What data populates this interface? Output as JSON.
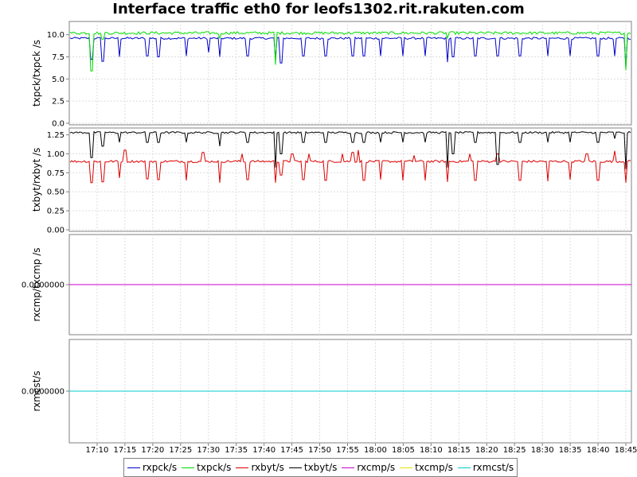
{
  "title": "Interface traffic eth0 for leofs1302.rit.rakuten.com",
  "colors": {
    "rxpck": "#0000cc",
    "txpck": "#00dd00",
    "rxbyt": "#dd0000",
    "txbyt": "#000000",
    "rxcmp": "#cc00cc",
    "txcmp": "#e6e600",
    "rxmcst": "#00cccc",
    "grid": "#dddddd",
    "axis": "#808080"
  },
  "chart_data": {
    "type": "line",
    "title": "Interface traffic eth0 for leofs1302.rit.rakuten.com",
    "x_ticks": [
      "17:10",
      "17:15",
      "17:20",
      "17:25",
      "17:30",
      "17:35",
      "17:40",
      "17:45",
      "17:50",
      "17:55",
      "18:00",
      "18:05",
      "18:10",
      "18:15",
      "18:20",
      "18:25",
      "18:30",
      "18:35",
      "18:40",
      "18:45"
    ],
    "x_range": [
      "17:05",
      "18:46"
    ],
    "grid": true,
    "legend_position": "bottom",
    "legend": [
      "rxpck/s",
      "txpck/s",
      "rxbyt/s",
      "txbyt/s",
      "rxcmp/s",
      "txcmp/s",
      "rxmcst/s"
    ],
    "panels": [
      {
        "ylabel": "txpck/txpck /s",
        "ylim": [
          0,
          11.5
        ],
        "yticks": [
          "0.0",
          "2.5",
          "5.0",
          "7.5",
          "10.0"
        ],
        "series": [
          {
            "name": "rxpck/s",
            "baseline": 9.6,
            "noise": 0.12,
            "dips": [
              [
                17.09,
                7.2
              ],
              [
                17.11,
                7.0
              ],
              [
                17.14,
                7.5
              ],
              [
                17.19,
                7.6
              ],
              [
                17.21,
                7.5
              ],
              [
                17.26,
                7.6
              ],
              [
                17.3,
                8.0
              ],
              [
                17.32,
                7.5
              ],
              [
                17.37,
                7.6
              ],
              [
                17.42,
                7.2
              ],
              [
                17.43,
                6.8
              ],
              [
                17.47,
                7.6
              ],
              [
                17.51,
                7.6
              ],
              [
                17.56,
                7.6
              ],
              [
                17.58,
                7.6
              ],
              [
                18.01,
                7.6
              ],
              [
                18.05,
                7.6
              ],
              [
                18.09,
                7.6
              ],
              [
                18.13,
                6.9
              ],
              [
                18.14,
                7.5
              ],
              [
                18.18,
                7.6
              ],
              [
                18.22,
                7.6
              ],
              [
                18.26,
                7.6
              ],
              [
                18.31,
                7.6
              ],
              [
                18.35,
                7.6
              ],
              [
                18.4,
                7.6
              ],
              [
                18.43,
                7.6
              ],
              [
                18.45,
                6.3
              ]
            ]
          },
          {
            "name": "txpck/s",
            "baseline": 10.2,
            "noise": 0.15,
            "dips": [
              [
                17.09,
                5.9
              ],
              [
                17.11,
                9.5
              ],
              [
                17.32,
                9.6
              ],
              [
                17.42,
                6.6
              ],
              [
                18.13,
                9.6
              ],
              [
                18.45,
                6.0
              ]
            ]
          }
        ]
      },
      {
        "ylabel": "txbyt/rxbyt /s",
        "ylim": [
          0,
          1.34
        ],
        "yticks": [
          "0.00",
          "0.25",
          "0.50",
          "0.75",
          "1.00",
          "1.25"
        ],
        "series": [
          {
            "name": "rxbyt/s",
            "baseline": 0.9,
            "noise": 0.015,
            "dips": [
              [
                17.09,
                0.62
              ],
              [
                17.11,
                0.63
              ],
              [
                17.14,
                0.68
              ],
              [
                17.19,
                0.67
              ],
              [
                17.21,
                0.66
              ],
              [
                17.26,
                0.65
              ],
              [
                17.32,
                0.62
              ],
              [
                17.37,
                0.66
              ],
              [
                17.42,
                0.62
              ],
              [
                17.43,
                0.72
              ],
              [
                17.47,
                0.66
              ],
              [
                17.51,
                0.65
              ],
              [
                17.56,
                0.66
              ],
              [
                17.58,
                0.65
              ],
              [
                18.01,
                0.66
              ],
              [
                18.05,
                0.65
              ],
              [
                18.09,
                0.65
              ],
              [
                18.13,
                0.63
              ],
              [
                18.18,
                0.65
              ],
              [
                18.22,
                0.66
              ],
              [
                18.26,
                0.65
              ],
              [
                18.31,
                0.64
              ],
              [
                18.35,
                0.66
              ],
              [
                18.4,
                0.65
              ],
              [
                18.45,
                0.62
              ]
            ],
            "spikes": [
              [
                17.15,
                1.05
              ],
              [
                17.29,
                1.02
              ],
              [
                17.36,
                1.0
              ],
              [
                17.45,
                1.0
              ],
              [
                17.48,
                1.0
              ],
              [
                17.54,
                1.0
              ],
              [
                17.56,
                1.02
              ],
              [
                17.57,
                1.05
              ],
              [
                18.07,
                0.98
              ],
              [
                18.17,
                1.0
              ],
              [
                18.22,
                1.0
              ],
              [
                18.38,
                1.0
              ],
              [
                18.43,
                1.04
              ]
            ]
          },
          {
            "name": "txbyt/s",
            "baseline": 1.28,
            "noise": 0.012,
            "dips": [
              [
                17.09,
                0.95
              ],
              [
                17.11,
                1.1
              ],
              [
                17.14,
                1.15
              ],
              [
                17.19,
                1.15
              ],
              [
                17.21,
                1.15
              ],
              [
                17.26,
                1.15
              ],
              [
                17.32,
                1.1
              ],
              [
                17.37,
                1.15
              ],
              [
                17.42,
                0.82
              ],
              [
                17.43,
                1.0
              ],
              [
                17.47,
                1.15
              ],
              [
                17.51,
                1.15
              ],
              [
                17.56,
                1.15
              ],
              [
                17.58,
                1.15
              ],
              [
                18.01,
                1.15
              ],
              [
                18.05,
                1.15
              ],
              [
                18.09,
                1.15
              ],
              [
                18.13,
                0.82
              ],
              [
                18.14,
                1.0
              ],
              [
                18.18,
                1.15
              ],
              [
                18.22,
                0.86
              ],
              [
                18.26,
                1.15
              ],
              [
                18.31,
                1.15
              ],
              [
                18.35,
                1.15
              ],
              [
                18.4,
                1.15
              ],
              [
                18.43,
                1.2
              ],
              [
                18.45,
                0.8
              ]
            ]
          }
        ]
      },
      {
        "ylabel": "rxcmp/txcmp /s",
        "ylim": [
          -1,
          1
        ],
        "yticks": [
          "0.0000000"
        ],
        "series": [
          {
            "name": "txcmp/s",
            "constant": 0
          },
          {
            "name": "rxcmp/s",
            "constant": 0
          }
        ]
      },
      {
        "ylabel": "rxmcst/s",
        "ylim": [
          -1,
          1
        ],
        "yticks": [
          "0.0000000"
        ],
        "series": [
          {
            "name": "rxmcst/s",
            "constant": 0
          }
        ]
      }
    ]
  }
}
